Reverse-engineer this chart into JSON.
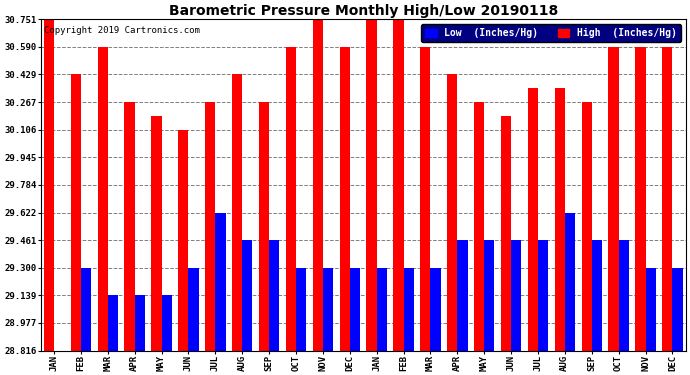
{
  "title": "Barometric Pressure Monthly High/Low 20190118",
  "copyright": "Copyright 2019 Cartronics.com",
  "legend_low": "Low  (Inches/Hg)",
  "legend_high": "High  (Inches/Hg)",
  "months": [
    "JAN",
    "FEB",
    "MAR",
    "APR",
    "MAY",
    "JUN",
    "JUL",
    "AUG",
    "SEP",
    "OCT",
    "NOV",
    "DEC",
    "JAN",
    "FEB",
    "MAR",
    "APR",
    "MAY",
    "JUN",
    "JUL",
    "AUG",
    "SEP",
    "OCT",
    "NOV",
    "DEC"
  ],
  "high_values": [
    30.751,
    30.429,
    30.59,
    30.267,
    30.186,
    30.106,
    30.267,
    30.429,
    30.267,
    30.59,
    30.751,
    30.59,
    30.751,
    30.751,
    30.59,
    30.429,
    30.267,
    30.186,
    30.349,
    30.349,
    30.267,
    30.59,
    30.59,
    30.59
  ],
  "low_values": [
    28.816,
    29.3,
    29.139,
    29.139,
    29.139,
    29.3,
    29.622,
    29.461,
    29.461,
    29.3,
    29.3,
    29.3,
    29.3,
    29.3,
    29.3,
    29.461,
    29.461,
    29.461,
    29.461,
    29.622,
    29.461,
    29.461,
    29.3,
    29.3
  ],
  "yticks": [
    28.816,
    28.977,
    29.139,
    29.3,
    29.461,
    29.622,
    29.784,
    29.945,
    30.106,
    30.267,
    30.429,
    30.59,
    30.751
  ],
  "ymin": 28.816,
  "ymax": 30.751,
  "bar_color_high": "#ff0000",
  "bar_color_low": "#0000ff",
  "bg_color": "#ffffff",
  "grid_color": "#808080",
  "title_fontsize": 10,
  "copyright_fontsize": 6.5,
  "tick_fontsize": 6.5,
  "legend_fontsize": 7
}
